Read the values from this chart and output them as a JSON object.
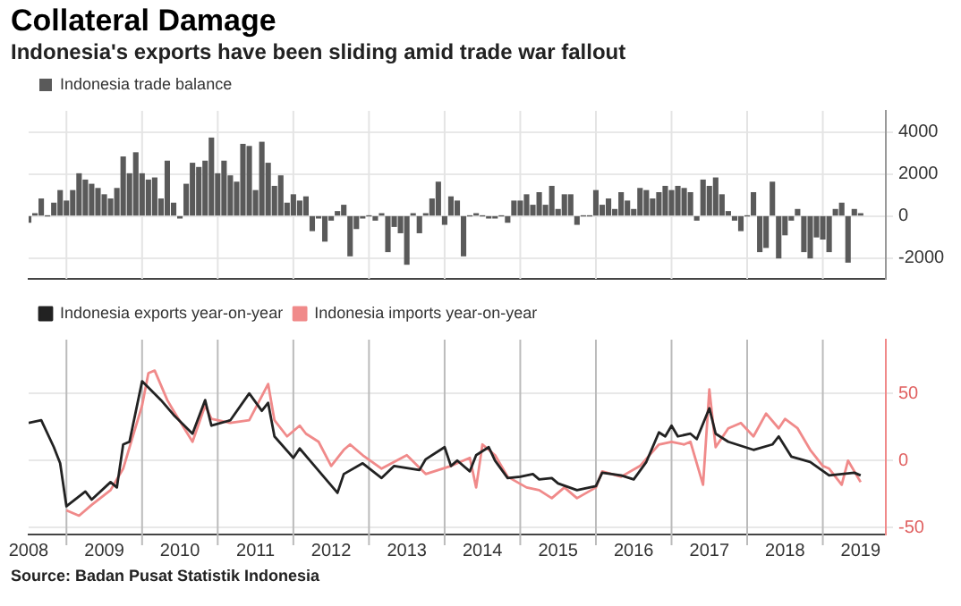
{
  "chart_data": [
    {
      "type": "bar",
      "title": "Collateral Damage",
      "subtitle": "Indonesia's exports have been sliding amid trade war fallout",
      "x": [
        "2008-07",
        "2008-08",
        "2008-09",
        "2008-10",
        "2008-11",
        "2008-12",
        "2009-01",
        "2009-02",
        "2009-03",
        "2009-04",
        "2009-05",
        "2009-06",
        "2009-07",
        "2009-08",
        "2009-09",
        "2009-10",
        "2009-11",
        "2009-12",
        "2010-01",
        "2010-02",
        "2010-03",
        "2010-04",
        "2010-05",
        "2010-06",
        "2010-07",
        "2010-08",
        "2010-09",
        "2010-10",
        "2010-11",
        "2010-12",
        "2011-01",
        "2011-02",
        "2011-03",
        "2011-04",
        "2011-05",
        "2011-06",
        "2011-07",
        "2011-08",
        "2011-09",
        "2011-10",
        "2011-11",
        "2011-12",
        "2012-01",
        "2012-02",
        "2012-03",
        "2012-04",
        "2012-05",
        "2012-06",
        "2012-07",
        "2012-08",
        "2012-09",
        "2012-10",
        "2012-11",
        "2012-12",
        "2013-01",
        "2013-02",
        "2013-03",
        "2013-04",
        "2013-05",
        "2013-06",
        "2013-07",
        "2013-08",
        "2013-09",
        "2013-10",
        "2013-11",
        "2013-12",
        "2014-01",
        "2014-02",
        "2014-03",
        "2014-04",
        "2014-05",
        "2014-06",
        "2014-07",
        "2014-08",
        "2014-09",
        "2014-10",
        "2014-11",
        "2014-12",
        "2015-01",
        "2015-02",
        "2015-03",
        "2015-04",
        "2015-05",
        "2015-06",
        "2015-07",
        "2015-08",
        "2015-09",
        "2015-10",
        "2015-11",
        "2015-12",
        "2016-01",
        "2016-02",
        "2016-03",
        "2016-04",
        "2016-05",
        "2016-06",
        "2016-07",
        "2016-08",
        "2016-09",
        "2016-10",
        "2016-11",
        "2016-12",
        "2017-01",
        "2017-02",
        "2017-03",
        "2017-04",
        "2017-05",
        "2017-06",
        "2017-07",
        "2017-08",
        "2017-09",
        "2017-10",
        "2017-11",
        "2017-12",
        "2018-01",
        "2018-02",
        "2018-03",
        "2018-04",
        "2018-05",
        "2018-06",
        "2018-07",
        "2018-08",
        "2018-09",
        "2018-10",
        "2018-11",
        "2018-12",
        "2019-01",
        "2019-02",
        "2019-03",
        "2019-04",
        "2019-05",
        "2019-06",
        "2019-07"
      ],
      "series": [
        {
          "name": "Indonesia trade balance",
          "color": "#5a5a5a",
          "values": [
            -300,
            100,
            800,
            0,
            600,
            1200,
            700,
            1200,
            2000,
            1700,
            1500,
            1300,
            1000,
            800,
            1300,
            2800,
            2000,
            3000,
            2000,
            1700,
            1800,
            800,
            2600,
            600,
            -100,
            1500,
            2500,
            2300,
            2600,
            3700,
            2000,
            2600,
            1900,
            1600,
            3400,
            3300,
            1200,
            3500,
            2500,
            1400,
            1900,
            600,
            1000,
            700,
            900,
            -700,
            -100,
            -1200,
            -200,
            200,
            500,
            -1900,
            -600,
            -100,
            0,
            -200,
            100,
            -1700,
            -500,
            -800,
            -2300,
            100,
            -800,
            100,
            800,
            1600,
            -400,
            900,
            700,
            -1900,
            0,
            100,
            0,
            -100,
            -100,
            0,
            -300,
            700,
            700,
            1000,
            500,
            1100,
            500,
            1400,
            300,
            1000,
            1000,
            -400,
            0,
            0,
            1200,
            500,
            800,
            300,
            1100,
            700,
            300,
            1300,
            1200,
            800,
            1100,
            1400,
            1200,
            1400,
            1300,
            1100,
            -200,
            1700,
            1400,
            1800,
            1000,
            200,
            -200,
            -700,
            0,
            1100,
            -1700,
            -1500,
            1600,
            -2000,
            -900,
            -200,
            300,
            -1700,
            -2000,
            -1000,
            -1100,
            -1700,
            300,
            600,
            -2200,
            300,
            100
          ]
        }
      ],
      "xlim": [
        "2008-07",
        "2019-11"
      ],
      "xticks": [
        {
          "value": "2008-07",
          "label": null
        },
        {
          "value": "2009-07",
          "label": null
        },
        {
          "value": "2010-07",
          "label": null
        },
        {
          "value": "2011-07",
          "label": null
        },
        {
          "value": "2012-07",
          "label": null
        },
        {
          "value": "2013-07",
          "label": null
        },
        {
          "value": "2014-07",
          "label": null
        },
        {
          "value": "2015-07",
          "label": null
        },
        {
          "value": "2016-07",
          "label": null
        },
        {
          "value": "2017-07",
          "label": null
        },
        {
          "value": "2018-07",
          "label": null
        },
        {
          "value": "2019-07",
          "label": null
        }
      ],
      "ylim": [
        -3000,
        5000
      ],
      "yticks": [
        -2000,
        0,
        2000,
        4000
      ],
      "tick_labels": "y",
      "grid": true,
      "legend": "top left"
    },
    {
      "type": "line",
      "series": [
        {
          "name": "Indonesia exports year-on-year",
          "color": "#222222",
          "x": [
            "2008-07",
            "2008-09",
            "2008-11",
            "2008-12",
            "2009-01",
            "2009-04",
            "2009-05",
            "2009-08",
            "2009-09",
            "2009-10",
            "2009-11",
            "2010-01",
            "2010-04",
            "2010-06",
            "2010-09",
            "2010-11",
            "2010-12",
            "2011-03",
            "2011-06",
            "2011-08",
            "2011-09",
            "2011-10",
            "2012-01",
            "2012-02",
            "2012-06",
            "2012-08",
            "2012-09",
            "2012-12",
            "2013-03",
            "2013-05",
            "2013-09",
            "2013-10",
            "2014-01",
            "2014-02",
            "2014-03",
            "2014-05",
            "2014-06",
            "2014-08",
            "2014-09",
            "2014-11",
            "2015-01",
            "2015-03",
            "2015-04",
            "2015-06",
            "2015-07",
            "2015-10",
            "2016-01",
            "2016-02",
            "2016-05",
            "2016-07",
            "2016-09",
            "2016-11",
            "2016-12",
            "2017-01",
            "2017-02",
            "2017-04",
            "2017-05",
            "2017-07",
            "2017-08",
            "2017-10",
            "2018-02",
            "2018-05",
            "2018-06",
            "2018-08",
            "2018-11",
            "2019-02",
            "2019-06",
            "2019-07"
          ],
          "values": [
            28,
            30,
            10,
            -2,
            -34,
            -23,
            -29,
            -16,
            -20,
            12,
            14,
            59,
            45,
            34,
            20,
            45,
            26,
            30,
            50,
            37,
            43,
            18,
            2,
            9,
            -13,
            -24,
            -10,
            -2,
            -13,
            -4,
            -7,
            1,
            10,
            -4,
            0,
            -8,
            4,
            10,
            0,
            -13,
            -12,
            -10,
            -14,
            -13,
            -17,
            -22,
            -19,
            -9,
            -11,
            -14,
            -1,
            21,
            18,
            26,
            18,
            20,
            16,
            39,
            20,
            14,
            8,
            12,
            18,
            3,
            -1,
            -11,
            -9,
            -11
          ]
        },
        {
          "name": "Indonesia imports year-on-year",
          "color": "#f08a8a",
          "x": [
            "2009-01",
            "2009-03",
            "2009-05",
            "2009-08",
            "2009-10",
            "2010-01",
            "2010-02",
            "2010-03",
            "2010-05",
            "2010-06",
            "2010-09",
            "2010-11",
            "2010-12",
            "2011-03",
            "2011-06",
            "2011-09",
            "2011-10",
            "2011-12",
            "2012-02",
            "2012-03",
            "2012-05",
            "2012-07",
            "2012-09",
            "2012-10",
            "2012-12",
            "2013-03",
            "2013-07",
            "2013-10",
            "2014-02",
            "2014-05",
            "2014-06",
            "2014-07",
            "2014-09",
            "2014-11",
            "2015-02",
            "2015-04",
            "2015-06",
            "2015-08",
            "2015-10",
            "2016-01",
            "2016-02",
            "2016-05",
            "2016-08",
            "2016-11",
            "2017-01",
            "2017-03",
            "2017-04",
            "2017-06",
            "2017-07",
            "2017-08",
            "2017-10",
            "2017-12",
            "2018-02",
            "2018-04",
            "2018-06",
            "2018-07",
            "2018-09",
            "2018-11",
            "2019-01",
            "2019-02",
            "2019-04",
            "2019-05",
            "2019-07"
          ],
          "values": [
            -37,
            -41,
            -33,
            -22,
            -6,
            41,
            65,
            67,
            45,
            37,
            14,
            41,
            31,
            28,
            30,
            57,
            30,
            18,
            26,
            20,
            14,
            -4,
            8,
            12,
            4,
            -6,
            4,
            -10,
            -4,
            2,
            -20,
            12,
            4,
            -12,
            -20,
            -22,
            -28,
            -20,
            -28,
            -20,
            -8,
            -12,
            -4,
            12,
            14,
            12,
            14,
            -18,
            53,
            10,
            24,
            28,
            18,
            35,
            24,
            31,
            24,
            8,
            -4,
            -6,
            -18,
            0,
            -16
          ]
        }
      ],
      "xlim": [
        "2008-07",
        "2019-11"
      ],
      "xticks": [
        {
          "value": "2008-07",
          "label": "2008"
        },
        {
          "value": "2009-07",
          "label": "2009"
        },
        {
          "value": "2010-07",
          "label": "2010"
        },
        {
          "value": "2011-07",
          "label": "2011"
        },
        {
          "value": "2012-07",
          "label": "2012"
        },
        {
          "value": "2013-07",
          "label": "2013"
        },
        {
          "value": "2014-07",
          "label": "2014"
        },
        {
          "value": "2015-07",
          "label": "2015"
        },
        {
          "value": "2016-07",
          "label": "2016"
        },
        {
          "value": "2017-07",
          "label": "2017"
        },
        {
          "value": "2018-07",
          "label": "2018"
        },
        {
          "value": "2019-07",
          "label": "2019"
        }
      ],
      "ylim": [
        -55,
        90
      ],
      "yticks": [
        -50,
        0,
        50
      ],
      "grid": true,
      "legend": "top left",
      "marker": "none",
      "line_style": "solid",
      "annotations": [
        "Source: Badan Pusat Statistik Indonesia"
      ]
    }
  ]
}
